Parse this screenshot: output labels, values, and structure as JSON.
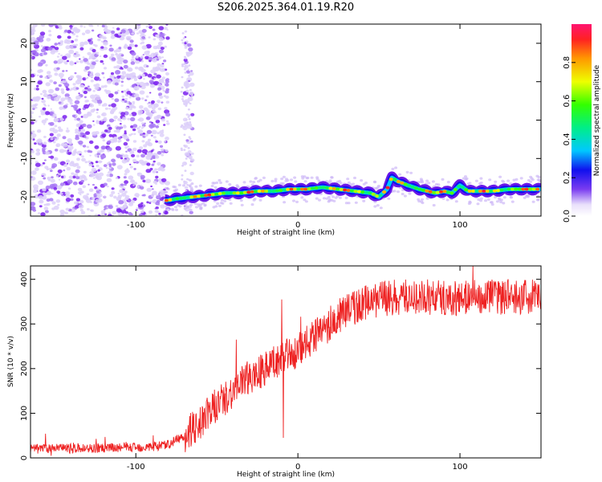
{
  "title": "S206.2025.364.01.19.R20",
  "colors": {
    "snr_line": "#ee2222",
    "scatter_strong": "#6a00e8",
    "scatter_weak": "#d8c4f8",
    "axis": "#000000"
  },
  "chart_data": [
    {
      "type": "heatmap",
      "name": "spectrogram",
      "xlabel": "Height of straight line (km)",
      "ylabel": "Frequency (Hz)",
      "xlim": [
        -165,
        150
      ],
      "ylim": [
        -25,
        25
      ],
      "xticks": [
        -100,
        0,
        100
      ],
      "yticks": [
        -20,
        -10,
        0,
        10,
        20
      ],
      "colorbar": {
        "label": "Normalized spectral amplitude",
        "range": [
          0,
          1
        ],
        "ticks": [
          "0.0",
          "0.2",
          "0.4",
          "0.6",
          "0.8"
        ]
      },
      "noise_region_x": [
        -165,
        -65
      ],
      "ridge": {
        "x": [
          -82,
          -75,
          -65,
          -55,
          -45,
          -35,
          -25,
          -15,
          -5,
          5,
          15,
          25,
          35,
          45,
          50,
          55,
          58,
          62,
          68,
          75,
          80,
          85,
          90,
          95,
          100,
          105,
          110,
          120,
          130,
          140,
          150
        ],
        "y": [
          -21,
          -20.5,
          -20,
          -19.5,
          -19,
          -19,
          -18.5,
          -18.5,
          -18,
          -18,
          -17.5,
          -18,
          -18.5,
          -19,
          -20,
          -18,
          -15,
          -16,
          -17,
          -18,
          -18.5,
          -19,
          -18.5,
          -19,
          -17,
          -18.5,
          -18.5,
          -18.5,
          -18,
          -18,
          -18
        ]
      }
    },
    {
      "type": "line",
      "name": "snr",
      "xlabel": "Height of straight line (km)",
      "ylabel": "SNR (10 * v/v)",
      "xlim": [
        -165,
        150
      ],
      "ylim": [
        0,
        430
      ],
      "xticks": [
        -100,
        0,
        100
      ],
      "yticks": [
        0,
        100,
        200,
        300,
        400
      ],
      "trend": {
        "x": [
          -165,
          -120,
          -90,
          -80,
          -70,
          -60,
          -50,
          -40,
          -30,
          -20,
          -10,
          0,
          10,
          20,
          30,
          40,
          50,
          60,
          80,
          100,
          120,
          150
        ],
        "y": [
          20,
          22,
          25,
          30,
          50,
          80,
          120,
          150,
          180,
          200,
          220,
          240,
          270,
          300,
          330,
          345,
          355,
          360,
          360,
          358,
          360,
          362
        ]
      },
      "noise_amplitude": [
        12,
        40
      ],
      "spikes": [
        {
          "x": -38,
          "y": 265
        },
        {
          "x": -10,
          "y": 355
        },
        {
          "x": -9,
          "y": 45
        },
        {
          "x": 108,
          "y": 430
        }
      ]
    }
  ]
}
